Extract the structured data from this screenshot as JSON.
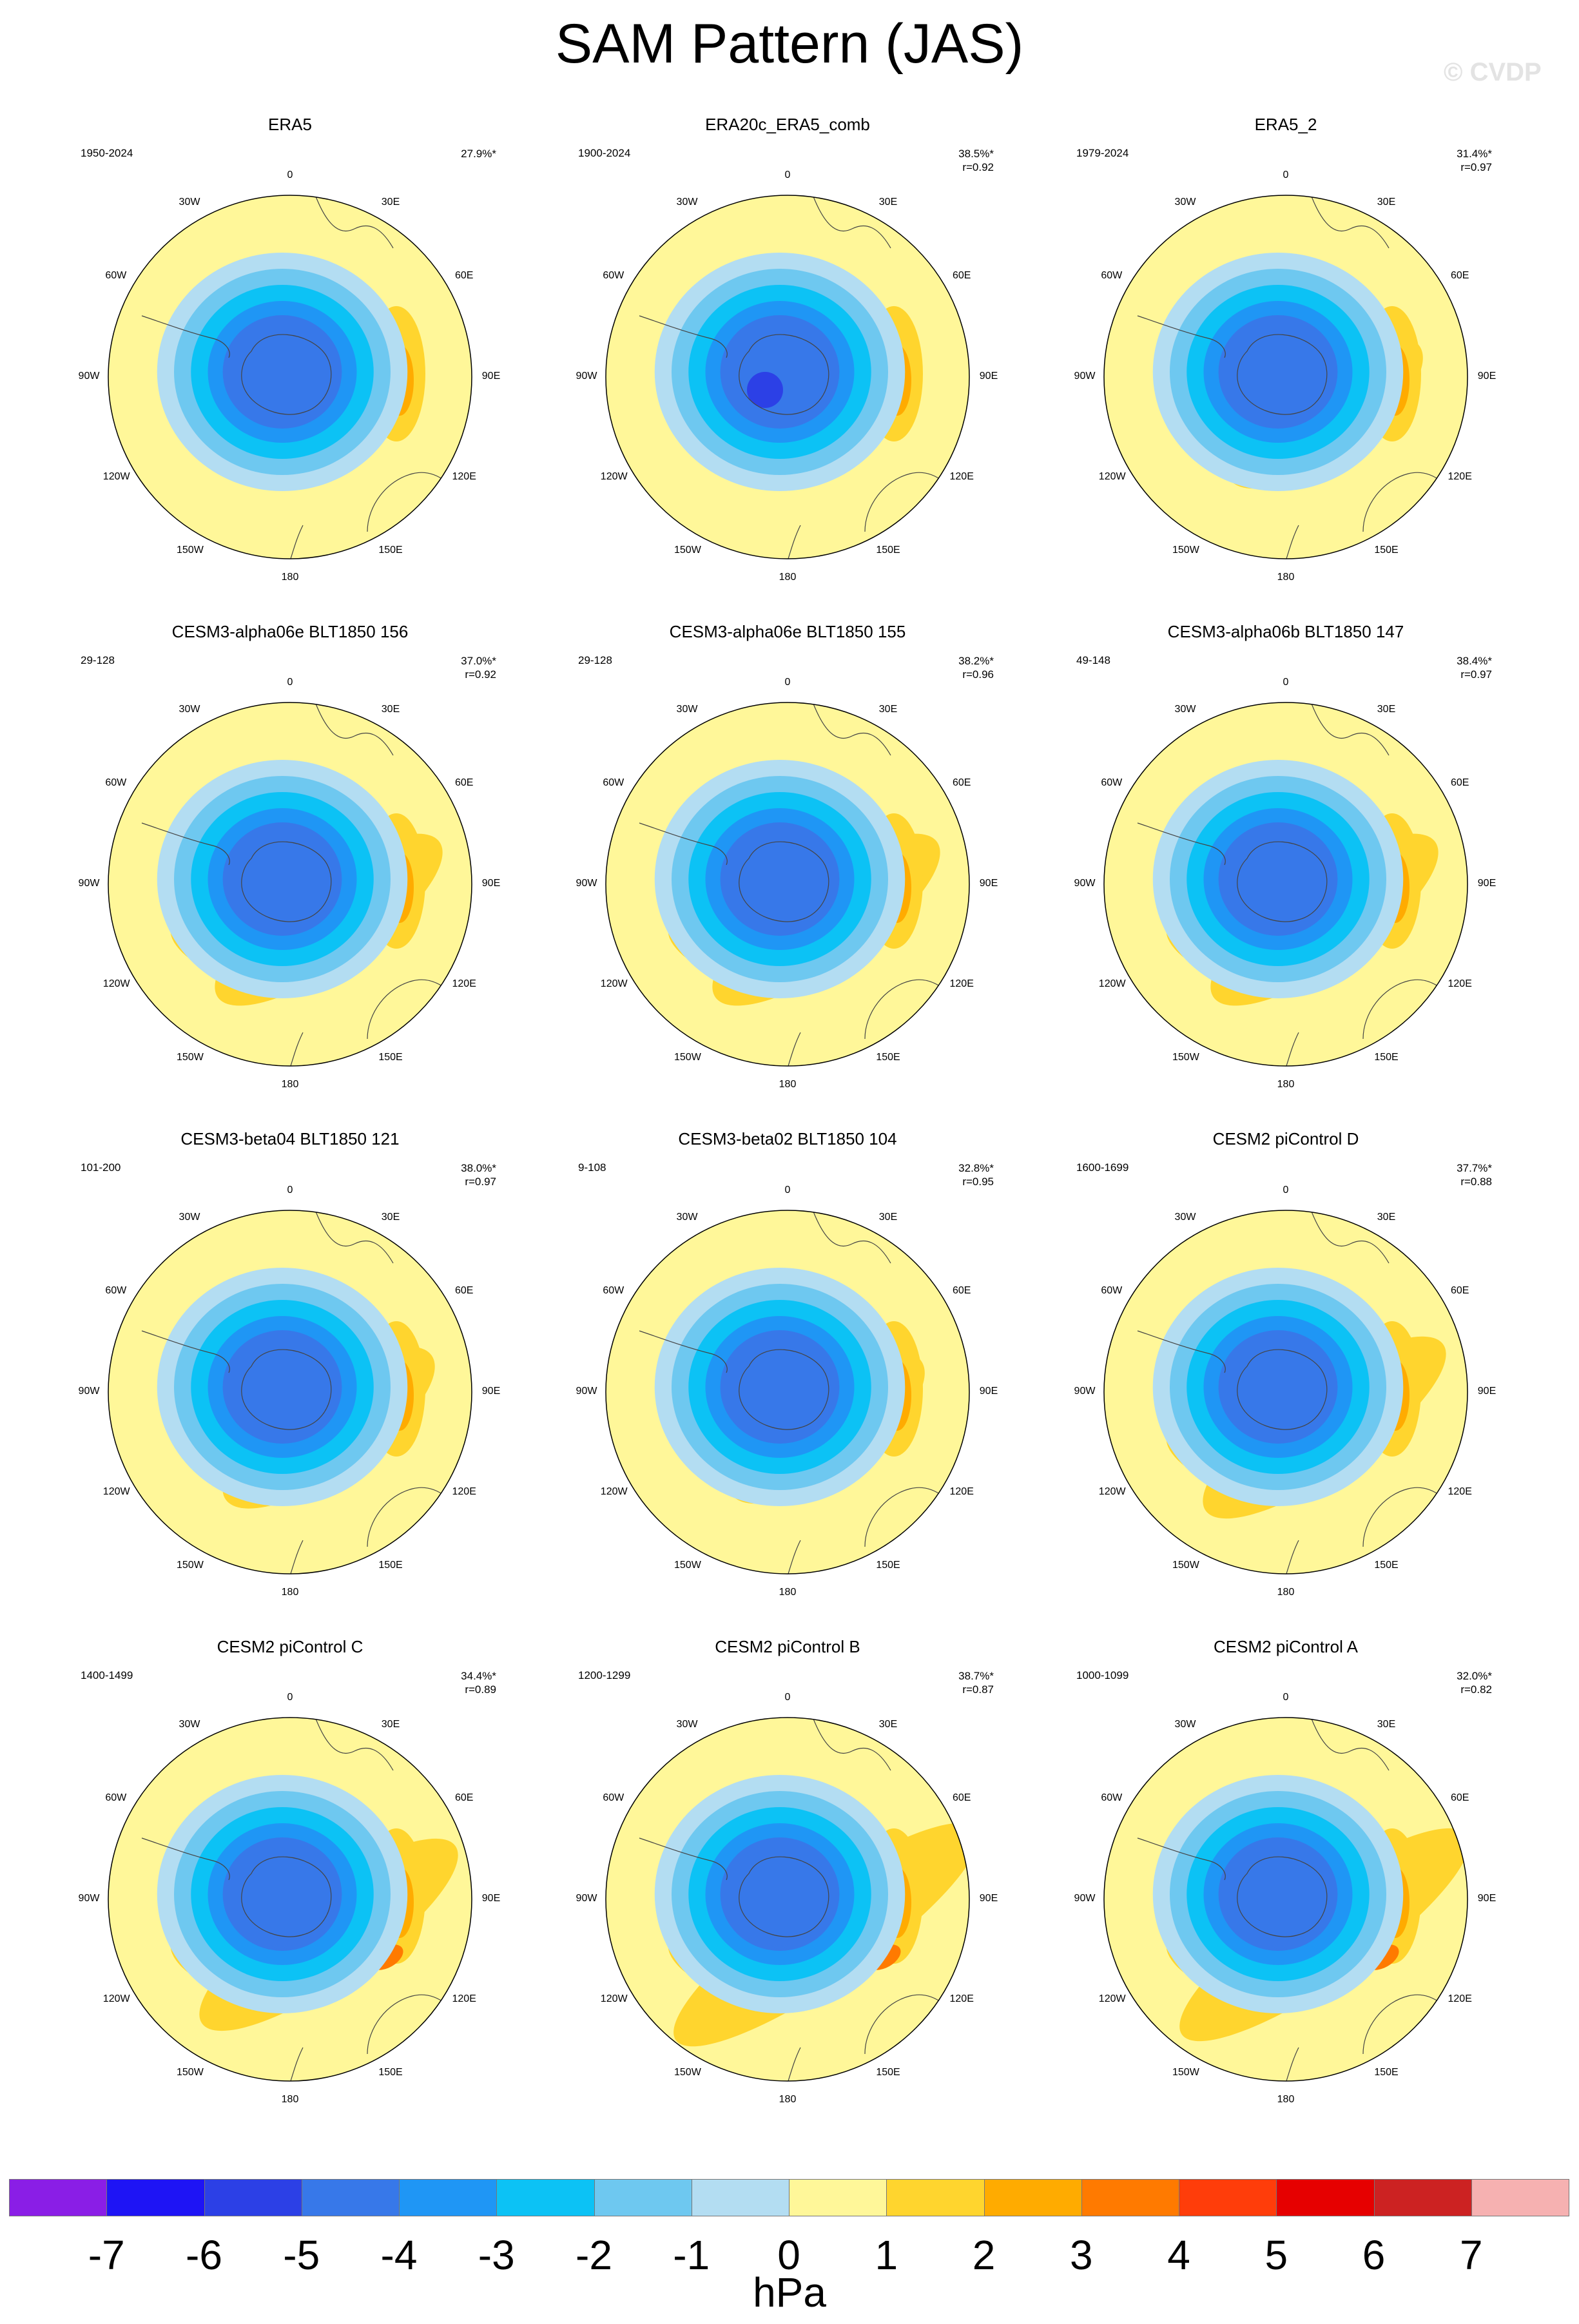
{
  "title": "SAM Pattern (JAS)",
  "watermark": "© CVDP",
  "chart_data": {
    "type": "polar-stereographic contour maps",
    "variable": "SAM pattern",
    "season": "JAS",
    "units": "hPa",
    "lon_labels": [
      "0",
      "30E",
      "60E",
      "90E",
      "120E",
      "150E",
      "180",
      "150W",
      "120W",
      "90W",
      "60W",
      "30W"
    ],
    "levels": [
      -7,
      -6,
      -5,
      -4,
      -3,
      -2,
      -1,
      0,
      1,
      2,
      3,
      4,
      5,
      6,
      7
    ],
    "colors": [
      "#8a1ee6",
      "#1e14f5",
      "#2c40e6",
      "#3778e9",
      "#1f96f5",
      "#0cc2f5",
      "#6ec8f0",
      "#b3ddf2",
      "#fff799",
      "#ffd52e",
      "#ffab00",
      "#ff7a00",
      "#ff3d0a",
      "#e60000",
      "#cc2222",
      "#f6b1b1"
    ],
    "panels": [
      {
        "name": "ERA5",
        "years": "1950-2024",
        "variance": "27.9%*",
        "r": ""
      },
      {
        "name": "ERA20c_ERA5_comb",
        "years": "1900-2024",
        "variance": "38.5%*",
        "r": "r=0.92"
      },
      {
        "name": "ERA5_2",
        "years": "1979-2024",
        "variance": "31.4%*",
        "r": "r=0.97"
      },
      {
        "name": "CESM3-alpha06e BLT1850 156",
        "years": "29-128",
        "variance": "37.0%*",
        "r": "r=0.92"
      },
      {
        "name": "CESM3-alpha06e BLT1850 155",
        "years": "29-128",
        "variance": "38.2%*",
        "r": "r=0.96"
      },
      {
        "name": "CESM3-alpha06b BLT1850 147",
        "years": "49-148",
        "variance": "38.4%*",
        "r": "r=0.97"
      },
      {
        "name": "CESM3-beta04 BLT1850 121",
        "years": "101-200",
        "variance": "38.0%*",
        "r": "r=0.97"
      },
      {
        "name": "CESM3-beta02 BLT1850 104",
        "years": "9-108",
        "variance": "32.8%*",
        "r": "r=0.95"
      },
      {
        "name": "CESM2 piControl D",
        "years": "1600-1699",
        "variance": "37.7%*",
        "r": "r=0.88"
      },
      {
        "name": "CESM2 piControl C",
        "years": "1400-1499",
        "variance": "34.4%*",
        "r": "r=0.89"
      },
      {
        "name": "CESM2 piControl B",
        "years": "1200-1299",
        "variance": "38.7%*",
        "r": "r=0.87"
      },
      {
        "name": "CESM2 piControl A",
        "years": "1000-1099",
        "variance": "32.0%*",
        "r": "r=0.82"
      }
    ]
  },
  "colorbar": {
    "ticks": [
      "-7",
      "-6",
      "-5",
      "-4",
      "-3",
      "-2",
      "-1",
      "0",
      "1",
      "2",
      "3",
      "4",
      "5",
      "6",
      "7"
    ],
    "units": "hPa"
  }
}
